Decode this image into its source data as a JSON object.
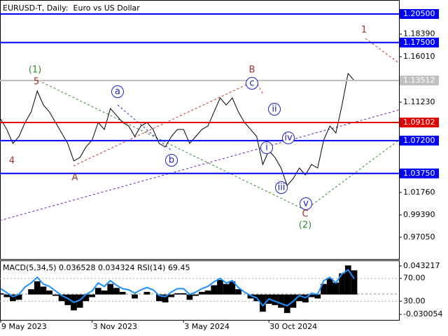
{
  "chart_data": [
    {
      "type": "line",
      "title": "EURUSD-T, Daily:  Euro vs US Dollar",
      "categories": [
        "9 May 2023",
        null,
        null,
        null,
        null,
        null,
        null,
        null,
        null,
        null,
        null,
        null,
        null,
        null,
        null,
        "3 Nov 2023",
        null,
        null,
        null,
        null,
        null,
        null,
        null,
        null,
        null,
        null,
        null,
        null,
        null,
        null,
        "3 May 2024",
        null,
        null,
        null,
        null,
        null,
        null,
        null,
        null,
        null,
        null,
        null,
        null,
        null,
        "30 Oct 2024",
        null,
        null,
        null,
        null,
        null,
        null,
        null,
        null,
        null,
        null,
        null,
        null,
        null,
        null
      ],
      "series": [
        {
          "color": "#000000",
          "values": [
            1.0947,
            1.0837,
            1.069,
            1.0763,
            1.091,
            1.1021,
            1.1241,
            1.1094,
            1.1021,
            1.091,
            1.08,
            1.069,
            1.0506,
            1.0543,
            1.0653,
            1.0726,
            1.091,
            1.0837,
            1.1057,
            1.0984,
            1.091,
            1.0873,
            1.0763,
            1.0873,
            1.091,
            1.0837,
            1.069,
            1.0653,
            1.0763,
            1.0837,
            1.0837,
            1.069,
            1.0763,
            1.0837,
            1.0873,
            1.1021,
            1.1168,
            1.1094,
            1.1168,
            1.1021,
            1.091,
            1.0837,
            1.0763,
            1.0469,
            1.0616,
            1.0543,
            1.0432,
            1.0248,
            1.0322,
            1.0432,
            1.0359,
            1.0469,
            1.0432,
            1.0726,
            1.0873,
            1.08,
            1.1094,
            1.1425,
            1.1351
          ]
        }
      ],
      "ylim": [
        0.9476,
        1.2197
      ],
      "yticks": [
        {
          "value": 1.1839,
          "label": "1.18390"
        },
        {
          "value": 1.1601,
          "label": "1.16010"
        },
        {
          "value": 1.1123,
          "label": "1.11230"
        },
        {
          "value": 1.0176,
          "label": "1.01760"
        },
        {
          "value": 0.9939,
          "label": "0.99390"
        },
        {
          "value": 0.9705,
          "label": "0.97050"
        }
      ],
      "levels": [
        {
          "value": 1.205,
          "label": "1.20500",
          "color": "#0000ff"
        },
        {
          "value": 1.175,
          "label": "1.17500",
          "color": "#0000ff"
        },
        {
          "value": 1.13512,
          "label": "1.13512",
          "color": "#c0c0c0"
        },
        {
          "value": 1.09102,
          "label": "1.09102",
          "color": "#e00000"
        },
        {
          "value": 1.072,
          "label": "1.07200",
          "color": "#0000ff"
        },
        {
          "value": 1.0375,
          "label": "1.03750",
          "color": "#0000ff"
        }
      ],
      "annotations": [
        "(1)",
        "5",
        "4",
        "A",
        "a",
        "b",
        "B",
        "c",
        "ii",
        "i",
        "iv",
        "iii",
        "v",
        "C",
        "(2)",
        "1"
      ]
    },
    {
      "type": "macd",
      "title": "MACD(5,34,5) 0.036528 0.034324 RSI(14) 69.45",
      "series": [
        {
          "color": "#000000",
          "values": [
            0.002,
            -0.004,
            -0.01,
            -0.008,
            0.0,
            0.008,
            0.02,
            0.012,
            0.006,
            -0.002,
            -0.01,
            -0.016,
            -0.024,
            -0.02,
            -0.01,
            -0.004,
            0.01,
            0.006,
            0.016,
            0.01,
            0.004,
            0.0,
            -0.006,
            0.0,
            0.004,
            0.0,
            -0.01,
            -0.012,
            -0.004,
            0.002,
            0.002,
            -0.008,
            -0.002,
            0.004,
            0.006,
            0.014,
            0.022,
            0.016,
            0.02,
            0.008,
            0.0,
            -0.006,
            -0.01,
            -0.026,
            -0.014,
            -0.016,
            -0.02,
            -0.028,
            -0.02,
            -0.01,
            -0.012,
            -0.004,
            -0.006,
            0.016,
            0.024,
            0.018,
            0.032,
            0.044,
            0.036528
          ]
        },
        {
          "color": "#1e90ff",
          "axis": "y2",
          "values": [
            52,
            45,
            38,
            42,
            55,
            62,
            72,
            60,
            56,
            48,
            40,
            35,
            28,
            32,
            42,
            48,
            62,
            56,
            66,
            58,
            52,
            50,
            44,
            50,
            54,
            50,
            40,
            38,
            46,
            52,
            52,
            42,
            46,
            52,
            56,
            64,
            70,
            62,
            66,
            54,
            46,
            40,
            36,
            22,
            34,
            30,
            26,
            22,
            30,
            40,
            36,
            44,
            42,
            66,
            72,
            62,
            78,
            85,
            69.45
          ]
        }
      ],
      "ylim": [
        -0.0384,
        0.0516
      ],
      "yticks": [
        0.043217,
        -0.030054
      ],
      "y2lim": [
        -2.7,
        101.5
      ],
      "y2ticks": [
        {
          "value": 70,
          "label": "70.00"
        },
        {
          "value": 30,
          "label": "30.00"
        }
      ]
    }
  ]
}
